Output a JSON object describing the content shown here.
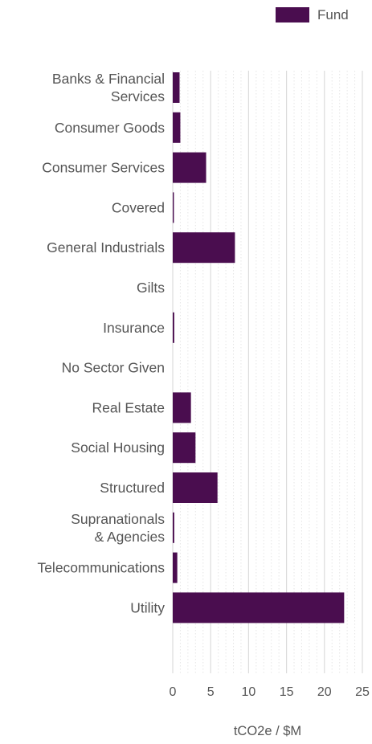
{
  "chart_data": {
    "type": "bar",
    "orientation": "horizontal",
    "categories": [
      [
        "Banks & Financial",
        "Services"
      ],
      [
        "Consumer Goods"
      ],
      [
        "Consumer Services"
      ],
      [
        "Covered"
      ],
      [
        "General Industrials"
      ],
      [
        "Gilts"
      ],
      [
        "Insurance"
      ],
      [
        "No Sector Given"
      ],
      [
        "Real Estate"
      ],
      [
        "Social Housing"
      ],
      [
        "Structured"
      ],
      [
        "Supranationals",
        "& Agencies"
      ],
      [
        "Telecommunications"
      ],
      [
        "Utility"
      ]
    ],
    "series": [
      {
        "name": "Fund",
        "color": "#4a0d4f",
        "values": [
          0.9,
          1.0,
          4.4,
          0.15,
          8.2,
          0,
          0.2,
          0,
          2.4,
          3.0,
          5.9,
          0.2,
          0.6,
          22.6
        ]
      }
    ],
    "xlim": [
      0,
      25
    ],
    "xticks": [
      "0",
      "5",
      "10",
      "15",
      "20",
      "25"
    ],
    "xlabel": "tCO2e / $M",
    "ylabel": "",
    "title": "",
    "grid": true,
    "legend_position": "top-right"
  }
}
